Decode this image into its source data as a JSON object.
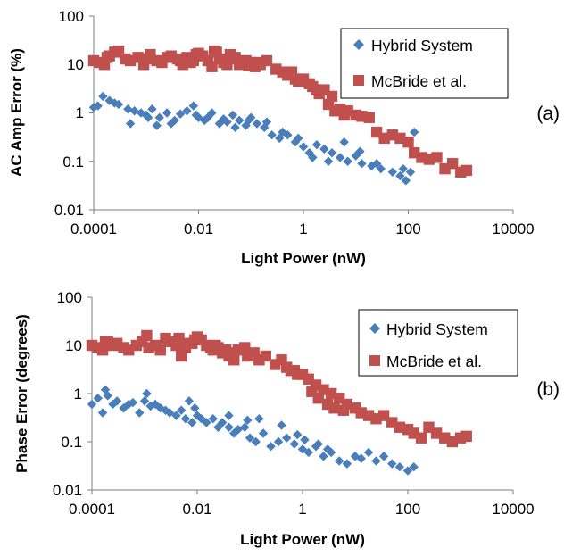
{
  "chart_data": [
    {
      "panel_label": "(a)",
      "type": "scatter",
      "xlabel": "Light Power (nW)",
      "ylabel": "AC Amp Error (%)",
      "xscale": "log",
      "yscale": "log",
      "xlim": [
        0.0001,
        10000
      ],
      "ylim": [
        0.01,
        100
      ],
      "xticks": [
        "0.0001",
        "0.01",
        "1",
        "100",
        "10000"
      ],
      "yticks": [
        "100",
        "10",
        "1",
        "0.1",
        "0.01"
      ],
      "grid": false,
      "legend_position": "top-right",
      "series": [
        {
          "name": "Hybrid System",
          "marker": "diamond",
          "color": "#4a7ebb",
          "x": [
            0.0001,
            0.00015,
            0.0002,
            0.00025,
            0.0003,
            0.00045,
            0.0006,
            0.0008,
            0.001,
            0.0013,
            0.0018,
            0.0025,
            0.0035,
            0.0045,
            0.006,
            0.008,
            0.01,
            0.013,
            0.018,
            0.025,
            0.035,
            0.045,
            0.06,
            0.08,
            0.1,
            0.13,
            0.18,
            0.25,
            0.35,
            0.5,
            0.7,
            1,
            1.3,
            1.8,
            2.5,
            3.5,
            5,
            7,
            10,
            13,
            20,
            30,
            50,
            80,
            110,
            130,
            0.00012,
            0.0005,
            0.0011,
            0.0016,
            0.003,
            0.009,
            0.015,
            0.03,
            0.05,
            0.09,
            0.2,
            0.4,
            0.8,
            1.5,
            3,
            6,
            12,
            25,
            70,
            90
          ],
          "y": [
            1.3,
            2.2,
            1.8,
            1.6,
            1.5,
            1.2,
            1.1,
            1.0,
            0.9,
            1.2,
            0.8,
            1.0,
            0.7,
            0.95,
            1.1,
            1.4,
            0.8,
            0.7,
            1.0,
            0.6,
            0.65,
            0.9,
            0.7,
            0.55,
            0.8,
            0.6,
            0.5,
            0.35,
            0.3,
            0.35,
            0.25,
            0.2,
            0.15,
            0.22,
            0.18,
            0.15,
            0.12,
            0.1,
            0.13,
            0.09,
            0.08,
            0.07,
            0.06,
            0.07,
            0.06,
            0.4,
            1.4,
            0.6,
            0.8,
            0.55,
            0.6,
            0.9,
            0.8,
            0.75,
            0.5,
            0.7,
            0.65,
            0.4,
            0.3,
            0.12,
            0.1,
            0.25,
            0.16,
            0.09,
            0.05,
            0.04
          ],
          "size": 5.2
        },
        {
          "name": "McBride et al.",
          "marker": "square",
          "color": "#c0504d",
          "x": [
            0.0001,
            0.00013,
            0.00016,
            0.0002,
            0.00025,
            0.0003,
            0.0004,
            0.0005,
            0.0007,
            0.0009,
            0.0012,
            0.0016,
            0.002,
            0.0025,
            0.003,
            0.004,
            0.005,
            0.006,
            0.008,
            0.01,
            0.012,
            0.015,
            0.02,
            0.025,
            0.03,
            0.04,
            0.05,
            0.06,
            0.08,
            0.1,
            0.12,
            0.15,
            0.2,
            0.3,
            0.4,
            0.5,
            0.7,
            1,
            1.3,
            1.8,
            2.5,
            3.5,
            5,
            7,
            10,
            13,
            18,
            25,
            35,
            50,
            70,
            100,
            130,
            180,
            250,
            350,
            500,
            700,
            1000,
            1300,
            0.00018,
            0.0011,
            0.0045,
            0.007,
            0.009,
            0.018,
            0.022,
            0.035,
            0.045,
            0.09,
            0.15,
            0.6,
            0.8,
            1.5,
            2,
            3,
            4,
            6
          ],
          "y": [
            12,
            11,
            10,
            15,
            18,
            19,
            13,
            12,
            14,
            10,
            16,
            12,
            11,
            14,
            15,
            13,
            10,
            14,
            12,
            17,
            15,
            12,
            19,
            13,
            11,
            16,
            14,
            10,
            12,
            11,
            9,
            10,
            12,
            8,
            7,
            6,
            5,
            5,
            4,
            3,
            3,
            2.2,
            1.2,
            1.1,
            0.9,
            0.85,
            0.8,
            0.4,
            0.3,
            0.35,
            0.3,
            0.25,
            0.15,
            0.12,
            0.11,
            0.12,
            0.07,
            0.09,
            0.06,
            0.065,
            14,
            13,
            12,
            11,
            16,
            9,
            18,
            10,
            13,
            9.5,
            11,
            7,
            4.5,
            3.5,
            2.5,
            1.5,
            1.1,
            0.9
          ],
          "size": 6.2
        }
      ]
    },
    {
      "panel_label": "(b)",
      "type": "scatter",
      "xlabel": "Light Power (nW)",
      "ylabel": "Phase Error (degrees)",
      "xscale": "log",
      "yscale": "log",
      "xlim": [
        0.0001,
        10000
      ],
      "ylim": [
        0.01,
        100
      ],
      "xticks": [
        "0.0001",
        "0.01",
        "1",
        "100",
        "10000"
      ],
      "yticks": [
        "100",
        "10",
        "1",
        "0.1",
        "0.01"
      ],
      "grid": false,
      "legend_position": "top-right",
      "series": [
        {
          "name": "Hybrid System",
          "marker": "diamond",
          "color": "#4a7ebb",
          "x": [
            0.0001,
            0.00013,
            0.00016,
            0.0002,
            0.00025,
            0.0003,
            0.0004,
            0.0005,
            0.0006,
            0.0008,
            0.001,
            0.0013,
            0.0016,
            0.002,
            0.0025,
            0.003,
            0.004,
            0.005,
            0.006,
            0.008,
            0.01,
            0.012,
            0.015,
            0.02,
            0.025,
            0.03,
            0.04,
            0.05,
            0.06,
            0.08,
            0.1,
            0.13,
            0.18,
            0.25,
            0.35,
            0.5,
            0.7,
            1,
            1.3,
            1.8,
            2.5,
            3.5,
            5,
            7,
            10,
            13,
            18,
            25,
            35,
            50,
            70,
            100,
            130,
            0.00018,
            0.0011,
            0.007,
            0.009,
            0.04,
            0.09,
            0.15,
            0.4,
            0.8,
            1.1,
            2,
            3
          ],
          "y": [
            0.6,
            0.8,
            0.4,
            0.9,
            0.6,
            0.7,
            0.5,
            0.6,
            0.65,
            0.4,
            0.7,
            0.55,
            0.6,
            0.5,
            0.45,
            0.4,
            0.35,
            0.45,
            0.3,
            0.25,
            0.35,
            0.3,
            0.25,
            0.3,
            0.2,
            0.25,
            0.2,
            0.15,
            0.18,
            0.2,
            0.12,
            0.1,
            0.15,
            0.08,
            0.1,
            0.12,
            0.09,
            0.07,
            0.06,
            0.08,
            0.05,
            0.06,
            0.04,
            0.035,
            0.05,
            0.045,
            0.06,
            0.04,
            0.05,
            0.035,
            0.03,
            0.025,
            0.03,
            1.2,
            1.0,
            0.7,
            0.5,
            0.35,
            0.28,
            0.3,
            0.22,
            0.14,
            0.11,
            0.09,
            0.07
          ],
          "size": 5.2
        },
        {
          "name": "McBride et al.",
          "marker": "square",
          "color": "#c0504d",
          "x": [
            0.0001,
            0.00013,
            0.00016,
            0.0002,
            0.00025,
            0.0003,
            0.0004,
            0.0005,
            0.0007,
            0.0009,
            0.0012,
            0.0016,
            0.002,
            0.0025,
            0.003,
            0.004,
            0.005,
            0.006,
            0.008,
            0.01,
            0.012,
            0.015,
            0.02,
            0.025,
            0.03,
            0.04,
            0.05,
            0.06,
            0.08,
            0.1,
            0.12,
            0.15,
            0.2,
            0.3,
            0.4,
            0.5,
            0.7,
            1,
            1.3,
            1.8,
            2.5,
            3.5,
            5,
            7,
            10,
            13,
            18,
            25,
            35,
            50,
            70,
            100,
            130,
            180,
            250,
            350,
            500,
            700,
            1000,
            1300,
            0.00018,
            0.0011,
            0.0045,
            0.007,
            0.009,
            0.018,
            0.022,
            0.035,
            0.045,
            0.09,
            0.15,
            0.6,
            0.8,
            1.5,
            2,
            3,
            4,
            6
          ],
          "y": [
            10,
            9,
            8,
            12,
            10,
            11,
            9,
            8,
            10,
            12,
            9,
            10,
            8,
            14,
            12,
            10,
            6,
            9,
            11,
            15,
            13,
            10,
            8,
            9,
            7,
            6,
            5,
            8,
            9,
            6,
            7,
            5,
            6,
            4,
            5,
            3.5,
            3,
            2.5,
            2,
            1.5,
            1.2,
            1,
            0.8,
            0.6,
            0.5,
            0.4,
            0.35,
            0.3,
            0.35,
            0.25,
            0.2,
            0.18,
            0.15,
            0.12,
            0.2,
            0.15,
            0.12,
            0.1,
            0.12,
            0.13,
            12,
            16,
            14,
            11,
            13,
            9,
            10,
            8,
            7,
            6,
            5,
            3,
            2.5,
            1.1,
            0.8,
            0.6,
            0.5,
            0.45
          ],
          "size": 6.2
        }
      ]
    }
  ]
}
